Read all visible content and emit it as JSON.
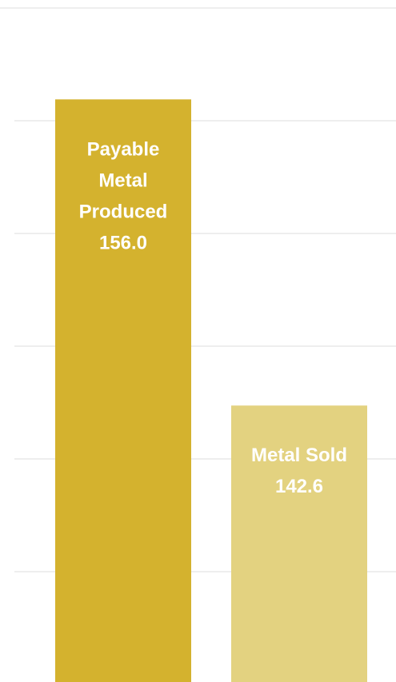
{
  "chart_data": {
    "type": "bar",
    "categories": [
      "Payable Metal Produced",
      "Metal Sold"
    ],
    "values": [
      156.0,
      142.6
    ],
    "label_lines": [
      [
        "Payable",
        "Metal",
        "Produced",
        "156.0"
      ],
      [
        "Metal Sold",
        "142.6"
      ]
    ],
    "colors": [
      "#d4b22e",
      "#e3d280"
    ],
    "ylim": [
      130.5,
      160
    ],
    "grid": true,
    "title": "",
    "xlabel": "",
    "ylabel": ""
  }
}
